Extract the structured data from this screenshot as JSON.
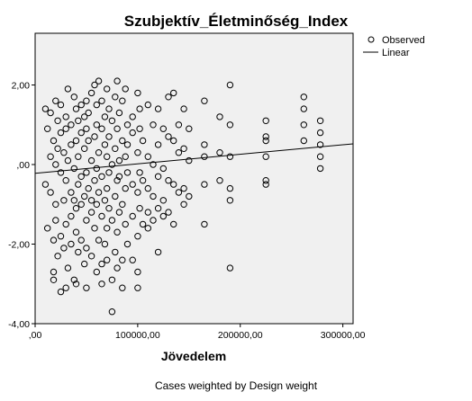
{
  "chart_data": {
    "type": "scatter",
    "title": "Szubjektív_Életminőség_Index",
    "xlabel": "Jövedelem",
    "ylabel": "",
    "footnote": "Cases weighted by Design weight",
    "xlim": [
      0,
      310000
    ],
    "ylim": [
      -4,
      3.3
    ],
    "x_ticks": [
      {
        "value": 0,
        "label": ",00"
      },
      {
        "value": 100000,
        "label": "100000,00"
      },
      {
        "value": 200000,
        "label": "200000,00"
      },
      {
        "value": 300000,
        "label": "300000,00"
      }
    ],
    "y_ticks": [
      {
        "value": 2,
        "label": "2,00"
      },
      {
        "value": 0,
        "label": ",00"
      },
      {
        "value": -2,
        "label": "-2,00"
      },
      {
        "value": -4,
        "label": "-4,00"
      }
    ],
    "grid": false,
    "legend": {
      "placement": "top-right",
      "entries": [
        {
          "label": "Observed",
          "marker": "circle"
        },
        {
          "label": "Linear",
          "marker": "line"
        }
      ]
    },
    "fit_line": {
      "name": "Linear",
      "x": [
        0,
        310000
      ],
      "y": [
        -0.22,
        0.52
      ]
    },
    "colors": {
      "plot_background": "#f0f0f0",
      "frame": "#000000",
      "marker_stroke": "#000000",
      "line": "#000000"
    },
    "series": [
      {
        "name": "Observed",
        "points": [
          [
            10000,
            1.4
          ],
          [
            10000,
            -0.5
          ],
          [
            12000,
            0.9
          ],
          [
            12000,
            -1.6
          ],
          [
            15000,
            0.2
          ],
          [
            15000,
            -0.7
          ],
          [
            15000,
            1.3
          ],
          [
            18000,
            -1.9
          ],
          [
            18000,
            0.6
          ],
          [
            18000,
            -2.7
          ],
          [
            18000,
            -2.9
          ],
          [
            20000,
            1.6
          ],
          [
            20000,
            0.0
          ],
          [
            20000,
            -1.0
          ],
          [
            20000,
            -1.4
          ],
          [
            22000,
            0.4
          ],
          [
            22000,
            -2.3
          ],
          [
            22000,
            1.1
          ],
          [
            25000,
            -3.2
          ],
          [
            25000,
            1.5
          ],
          [
            25000,
            -0.2
          ],
          [
            25000,
            -1.8
          ],
          [
            25000,
            0.8
          ],
          [
            28000,
            -0.9
          ],
          [
            28000,
            0.3
          ],
          [
            28000,
            -2.1
          ],
          [
            30000,
            1.2
          ],
          [
            30000,
            -0.4
          ],
          [
            30000,
            -3.1
          ],
          [
            30000,
            0.9
          ],
          [
            30000,
            -1.5
          ],
          [
            32000,
            1.9
          ],
          [
            32000,
            0.1
          ],
          [
            32000,
            -2.6
          ],
          [
            35000,
            -0.7
          ],
          [
            35000,
            1.0
          ],
          [
            35000,
            -1.3
          ],
          [
            35000,
            0.5
          ],
          [
            35000,
            -2.0
          ],
          [
            38000,
            1.7
          ],
          [
            38000,
            -0.1
          ],
          [
            38000,
            -2.9
          ],
          [
            38000,
            -0.9
          ],
          [
            40000,
            0.6
          ],
          [
            40000,
            1.4
          ],
          [
            40000,
            -1.1
          ],
          [
            40000,
            -3.0
          ],
          [
            40000,
            -1.7
          ],
          [
            42000,
            0.2
          ],
          [
            42000,
            -0.5
          ],
          [
            42000,
            1.1
          ],
          [
            42000,
            -2.2
          ],
          [
            45000,
            -0.3
          ],
          [
            45000,
            0.8
          ],
          [
            45000,
            -1.0
          ],
          [
            45000,
            1.5
          ],
          [
            45000,
            -1.9
          ],
          [
            48000,
            0.4
          ],
          [
            48000,
            -0.8
          ],
          [
            48000,
            1.2
          ],
          [
            48000,
            -2.5
          ],
          [
            50000,
            -0.2
          ],
          [
            50000,
            0.9
          ],
          [
            50000,
            -1.4
          ],
          [
            50000,
            1.6
          ],
          [
            50000,
            -2.1
          ],
          [
            50000,
            -3.1
          ],
          [
            52000,
            0.6
          ],
          [
            52000,
            -0.6
          ],
          [
            52000,
            1.3
          ],
          [
            55000,
            -1.2
          ],
          [
            55000,
            0.1
          ],
          [
            55000,
            1.8
          ],
          [
            55000,
            -2.3
          ],
          [
            55000,
            -0.9
          ],
          [
            58000,
            2.0
          ],
          [
            58000,
            0.7
          ],
          [
            58000,
            -0.4
          ],
          [
            58000,
            -1.6
          ],
          [
            60000,
            1.0
          ],
          [
            60000,
            -0.1
          ],
          [
            60000,
            -1.0
          ],
          [
            60000,
            -2.7
          ],
          [
            60000,
            1.5
          ],
          [
            62000,
            0.3
          ],
          [
            62000,
            -0.7
          ],
          [
            62000,
            -1.9
          ],
          [
            62000,
            2.1
          ],
          [
            65000,
            0.9
          ],
          [
            65000,
            -0.3
          ],
          [
            65000,
            -1.3
          ],
          [
            65000,
            1.6
          ],
          [
            65000,
            -2.5
          ],
          [
            65000,
            -3.0
          ],
          [
            68000,
            0.5
          ],
          [
            68000,
            -0.9
          ],
          [
            68000,
            1.2
          ],
          [
            68000,
            -2.0
          ],
          [
            70000,
            1.9
          ],
          [
            70000,
            0.2
          ],
          [
            70000,
            -0.6
          ],
          [
            70000,
            -1.6
          ],
          [
            70000,
            -2.4
          ],
          [
            72000,
            1.4
          ],
          [
            72000,
            -0.2
          ],
          [
            72000,
            -1.1
          ],
          [
            72000,
            0.7
          ],
          [
            75000,
            -3.7
          ],
          [
            75000,
            0.0
          ],
          [
            75000,
            1.1
          ],
          [
            75000,
            -1.4
          ],
          [
            75000,
            -2.9
          ],
          [
            78000,
            0.4
          ],
          [
            78000,
            -0.8
          ],
          [
            78000,
            1.7
          ],
          [
            78000,
            -2.2
          ],
          [
            80000,
            2.1
          ],
          [
            80000,
            -0.4
          ],
          [
            80000,
            0.9
          ],
          [
            80000,
            -1.7
          ],
          [
            80000,
            -2.6
          ],
          [
            82000,
            0.1
          ],
          [
            82000,
            -0.3
          ],
          [
            82000,
            1.3
          ],
          [
            82000,
            -1.2
          ],
          [
            85000,
            -3.1
          ],
          [
            85000,
            0.6
          ],
          [
            85000,
            -1.0
          ],
          [
            85000,
            1.6
          ],
          [
            85000,
            -2.4
          ],
          [
            88000,
            0.2
          ],
          [
            88000,
            -0.6
          ],
          [
            88000,
            1.9
          ],
          [
            88000,
            -1.5
          ],
          [
            90000,
            1.0
          ],
          [
            90000,
            -0.2
          ],
          [
            90000,
            -2.0
          ],
          [
            90000,
            0.5
          ],
          [
            95000,
            1.2
          ],
          [
            95000,
            -0.5
          ],
          [
            95000,
            -1.3
          ],
          [
            95000,
            0.8
          ],
          [
            95000,
            -2.4
          ],
          [
            100000,
            1.8
          ],
          [
            100000,
            0.3
          ],
          [
            100000,
            -0.7
          ],
          [
            100000,
            -1.8
          ],
          [
            100000,
            -2.7
          ],
          [
            100000,
            -3.1
          ],
          [
            102000,
            0.9
          ],
          [
            102000,
            -0.2
          ],
          [
            102000,
            1.4
          ],
          [
            102000,
            -1.1
          ],
          [
            105000,
            0.6
          ],
          [
            105000,
            -0.4
          ],
          [
            105000,
            -1.5
          ],
          [
            110000,
            1.5
          ],
          [
            110000,
            0.2
          ],
          [
            110000,
            -0.6
          ],
          [
            110000,
            -1.2
          ],
          [
            110000,
            -1.6
          ],
          [
            115000,
            1.0
          ],
          [
            115000,
            0.0
          ],
          [
            115000,
            -0.8
          ],
          [
            115000,
            -1.4
          ],
          [
            120000,
            1.4
          ],
          [
            120000,
            0.5
          ],
          [
            120000,
            -0.3
          ],
          [
            120000,
            -1.1
          ],
          [
            120000,
            -2.2
          ],
          [
            125000,
            0.9
          ],
          [
            125000,
            -0.1
          ],
          [
            125000,
            -0.9
          ],
          [
            125000,
            -1.3
          ],
          [
            130000,
            1.7
          ],
          [
            130000,
            0.7
          ],
          [
            130000,
            -0.4
          ],
          [
            130000,
            -1.2
          ],
          [
            135000,
            1.8
          ],
          [
            135000,
            0.6
          ],
          [
            135000,
            -0.5
          ],
          [
            135000,
            -1.5
          ],
          [
            140000,
            0.3
          ],
          [
            140000,
            -0.7
          ],
          [
            140000,
            1.0
          ],
          [
            145000,
            1.4
          ],
          [
            145000,
            0.4
          ],
          [
            145000,
            -0.6
          ],
          [
            145000,
            -1.0
          ],
          [
            150000,
            0.1
          ],
          [
            150000,
            -0.8
          ],
          [
            150000,
            0.9
          ],
          [
            165000,
            1.6
          ],
          [
            165000,
            0.5
          ],
          [
            165000,
            -0.5
          ],
          [
            165000,
            -1.5
          ],
          [
            165000,
            0.2
          ],
          [
            180000,
            1.2
          ],
          [
            180000,
            0.3
          ],
          [
            180000,
            -0.4
          ],
          [
            190000,
            2.0
          ],
          [
            190000,
            1.0
          ],
          [
            190000,
            0.2
          ],
          [
            190000,
            -0.6
          ],
          [
            190000,
            -0.9
          ],
          [
            190000,
            -2.6
          ],
          [
            225000,
            1.1
          ],
          [
            225000,
            0.7
          ],
          [
            225000,
            0.2
          ],
          [
            225000,
            -0.4
          ],
          [
            225000,
            -0.5
          ],
          [
            225000,
            0.6
          ],
          [
            262000,
            1.7
          ],
          [
            262000,
            1.4
          ],
          [
            262000,
            1.0
          ],
          [
            262000,
            0.6
          ],
          [
            278000,
            1.1
          ],
          [
            278000,
            0.8
          ],
          [
            278000,
            0.5
          ],
          [
            278000,
            0.2
          ],
          [
            278000,
            -0.1
          ]
        ]
      }
    ]
  }
}
